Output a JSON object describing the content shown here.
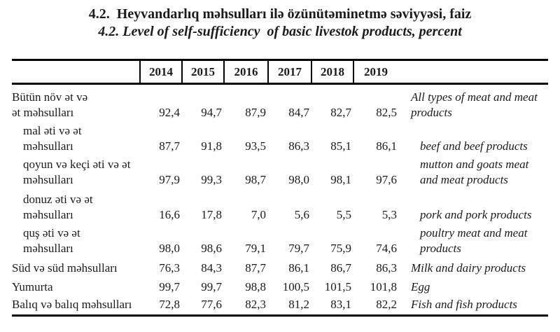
{
  "title": {
    "line1_az": "4.2.  Heyvandarlıq məhsulları ilə özünütəminetmə səviyyəsi, faiz",
    "line2_en": "4.2. Level of self-sufficiency  of basic livestok products, percent"
  },
  "table": {
    "years": [
      "2014",
      "2015",
      "2016",
      "2017",
      "2018",
      "2019"
    ],
    "rows": [
      {
        "az": "Bütün növ ət və\nət məhsulları",
        "values": [
          "92,4",
          "94,7",
          "87,9",
          "84,7",
          "82,7",
          "82,5"
        ],
        "en": "All types of meat and meat\nproducts"
      },
      {
        "az": "mal əti və ət\nməhsulları",
        "values": [
          "87,7",
          "91,8",
          "93,5",
          "86,3",
          "85,1",
          "86,1"
        ],
        "en": "beef and beef products"
      },
      {
        "az": "qoyun və keçi əti və ət\nməhsulları",
        "values": [
          "97,9",
          "99,3",
          "98,7",
          "98,0",
          "98,1",
          "97,6"
        ],
        "en": "mutton and goats meat\nand meat products"
      },
      {
        "az": "donuz əti və ət\nməhsulları",
        "values": [
          "16,6",
          "17,8",
          "7,0",
          "5,6",
          "5,5",
          "5,3"
        ],
        "en": "pork and pork products"
      },
      {
        "az": "quş əti və ət\nməhsulları",
        "values": [
          "98,0",
          "98,6",
          "79,1",
          "79,7",
          "75,9",
          "74,6"
        ],
        "en": "poultry meat and meat\nproducts"
      },
      {
        "az": "Süd və süd məhsulları",
        "values": [
          "76,3",
          "84,3",
          "87,7",
          "86,1",
          "86,7",
          "86,3"
        ],
        "en": "Milk and dairy products"
      },
      {
        "az": "Yumurta",
        "values": [
          "99,7",
          "99,7",
          "98,8",
          "100,5",
          "101,5",
          "101,8"
        ],
        "en": "Egg"
      },
      {
        "az": "Balıq və balıq məhsulları",
        "values": [
          "72,8",
          "77,6",
          "82,3",
          "81,2",
          "83,1",
          "82,2"
        ],
        "en": "Fish and fish products"
      }
    ]
  }
}
